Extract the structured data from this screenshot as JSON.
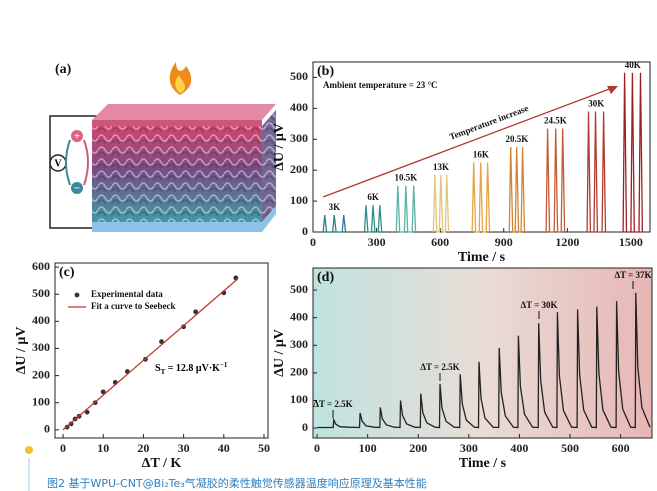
{
  "figure": {
    "caption": "图2 基于WPU-CNT@Bi₂Te₃气凝胶的柔性触觉传感器温度响应原理及基本性能",
    "panel_a": {
      "label": "(a)",
      "meter": "V",
      "plus": "+",
      "minus": "−"
    }
  },
  "chart_data": [
    {
      "type": "line",
      "panel_label": "(b)",
      "xlabel": "Time / s",
      "ylabel": "ΔU / μV",
      "xlim": [
        0,
        1590
      ],
      "ylim": [
        0,
        550
      ],
      "xticks": [
        0,
        300,
        600,
        900,
        1200,
        1500
      ],
      "yticks": [
        0,
        100,
        200,
        300,
        400,
        500
      ],
      "annotations": [
        "Ambient temperature = 23 °C",
        "Temperature increase"
      ],
      "series": [
        {
          "name": "3K",
          "color": "#2b7f8c",
          "x": [
            48,
            55,
            64,
            93,
            100,
            109,
            138,
            145,
            154
          ],
          "values": [
            0,
            55,
            0,
            0,
            55,
            0,
            0,
            55,
            0
          ]
        },
        {
          "name": "6K",
          "color": "#2e8f8f",
          "x": [
            243,
            250,
            259,
            276,
            283,
            292,
            308,
            315,
            324
          ],
          "values": [
            0,
            87,
            0,
            0,
            87,
            0,
            0,
            87,
            0
          ]
        },
        {
          "name": "10.5K",
          "color": "#5cb2a6",
          "x": [
            393,
            400,
            409,
            431,
            438,
            447,
            468,
            475,
            484
          ],
          "values": [
            0,
            150,
            0,
            0,
            150,
            0,
            0,
            150,
            0
          ]
        },
        {
          "name": "13K",
          "color": "#e3c577",
          "x": [
            568,
            575,
            584,
            596,
            603,
            612,
            624,
            631,
            640
          ],
          "values": [
            0,
            185,
            0,
            0,
            185,
            0,
            0,
            185,
            0
          ]
        },
        {
          "name": "16K",
          "color": "#e3a446",
          "x": [
            751,
            758,
            767,
            784,
            791,
            800,
            817,
            824,
            833
          ],
          "values": [
            0,
            225,
            0,
            0,
            225,
            0,
            0,
            225,
            0
          ]
        },
        {
          "name": "20.5K",
          "color": "#d08433",
          "x": [
            926,
            933,
            942,
            954,
            961,
            970,
            982,
            989,
            998
          ],
          "values": [
            0,
            275,
            0,
            0,
            275,
            0,
            0,
            275,
            0
          ]
        },
        {
          "name": "24.5K",
          "color": "#c25a32",
          "x": [
            1100,
            1107,
            1116,
            1138,
            1145,
            1154,
            1171,
            1178,
            1187
          ],
          "values": [
            0,
            335,
            0,
            0,
            335,
            0,
            0,
            335,
            0
          ]
        },
        {
          "name": "30K",
          "color": "#b03c30",
          "x": [
            1293,
            1300,
            1309,
            1326,
            1333,
            1342,
            1364,
            1371,
            1380
          ],
          "values": [
            0,
            390,
            0,
            0,
            390,
            0,
            0,
            390,
            0
          ]
        },
        {
          "name": "40K",
          "color": "#9e1f22",
          "x": [
            1463,
            1470,
            1479,
            1500,
            1507,
            1516,
            1538,
            1545,
            1554
          ],
          "values": [
            0,
            515,
            0,
            0,
            515,
            0,
            0,
            515,
            0
          ]
        }
      ]
    },
    {
      "type": "scatter",
      "panel_label": "(c)",
      "xlabel": "ΔT / K",
      "ylabel": "ΔU / μV",
      "xlim": [
        -2,
        51
      ],
      "ylim": [
        -30,
        615
      ],
      "xticks": [
        0,
        10,
        20,
        30,
        40,
        50
      ],
      "yticks": [
        0,
        100,
        200,
        300,
        400,
        500,
        600
      ],
      "legend": "upper left",
      "slope_label": {
        "symbol": "S",
        "subscript": "T",
        "text": " = 12.8 μV·K",
        "superscript": "−1"
      },
      "series": [
        {
          "name": "Experimental data",
          "color": "#333333",
          "style": "markers",
          "x": [
            1,
            2,
            3,
            4,
            6,
            8,
            10,
            13,
            16,
            20.5,
            24.5,
            30,
            33,
            40,
            43
          ],
          "values": [
            10,
            22,
            40,
            50,
            65,
            100,
            140,
            175,
            215,
            260,
            325,
            380,
            435,
            505,
            560
          ]
        },
        {
          "name": "Fit a curve to Seebeck",
          "color": "#c0392b",
          "style": "line",
          "x": [
            0,
            43.5
          ],
          "values": [
            0,
            557
          ]
        }
      ]
    },
    {
      "type": "line",
      "panel_label": "(d)",
      "xlabel": "Time / s",
      "ylabel": "ΔU / μV",
      "xlim": [
        -8,
        662
      ],
      "ylim": [
        -36,
        580
      ],
      "xticks": [
        0,
        100,
        200,
        300,
        400,
        500,
        600
      ],
      "yticks": [
        0,
        100,
        200,
        300,
        400,
        500
      ],
      "annotations": [
        "ΔT = 2.5K",
        "ΔT = 2.5K",
        "ΔT = 30K",
        "ΔT = 37K"
      ],
      "series": [
        {
          "color": "#222222",
          "x": [
            0,
            32,
            33,
            37,
            45,
            61,
            84,
            85,
            89,
            97,
            113,
            124,
            125,
            129,
            137,
            153,
            164,
            165,
            169,
            177,
            193,
            204,
            205,
            209,
            217,
            233,
            242,
            243,
            247,
            255,
            271,
            282,
            283,
            287,
            295,
            311,
            319,
            320,
            324,
            332,
            348,
            359,
            360,
            364,
            372,
            388,
            397,
            398,
            402,
            410,
            426,
            437,
            438,
            442,
            450,
            466,
            474,
            475,
            479,
            487,
            503,
            514,
            515,
            519,
            527,
            543,
            552,
            553,
            557,
            565,
            581,
            591,
            592,
            596,
            604,
            620,
            629,
            630,
            634,
            642,
            658
          ],
          "values": [
            2,
            2,
            30,
            14,
            5,
            3,
            2,
            55,
            25,
            8,
            3,
            2,
            75,
            34,
            11,
            3,
            2,
            100,
            45,
            15,
            3,
            2,
            125,
            56,
            19,
            3,
            2,
            160,
            72,
            24,
            3,
            2,
            195,
            88,
            29,
            3,
            2,
            240,
            108,
            36,
            3,
            2,
            290,
            131,
            44,
            3,
            2,
            335,
            151,
            50,
            3,
            2,
            380,
            171,
            57,
            3,
            2,
            420,
            189,
            63,
            3,
            2,
            430,
            194,
            65,
            3,
            2,
            440,
            198,
            66,
            3,
            2,
            460,
            207,
            69,
            3,
            2,
            490,
            221,
            74,
            3
          ]
        }
      ]
    }
  ]
}
